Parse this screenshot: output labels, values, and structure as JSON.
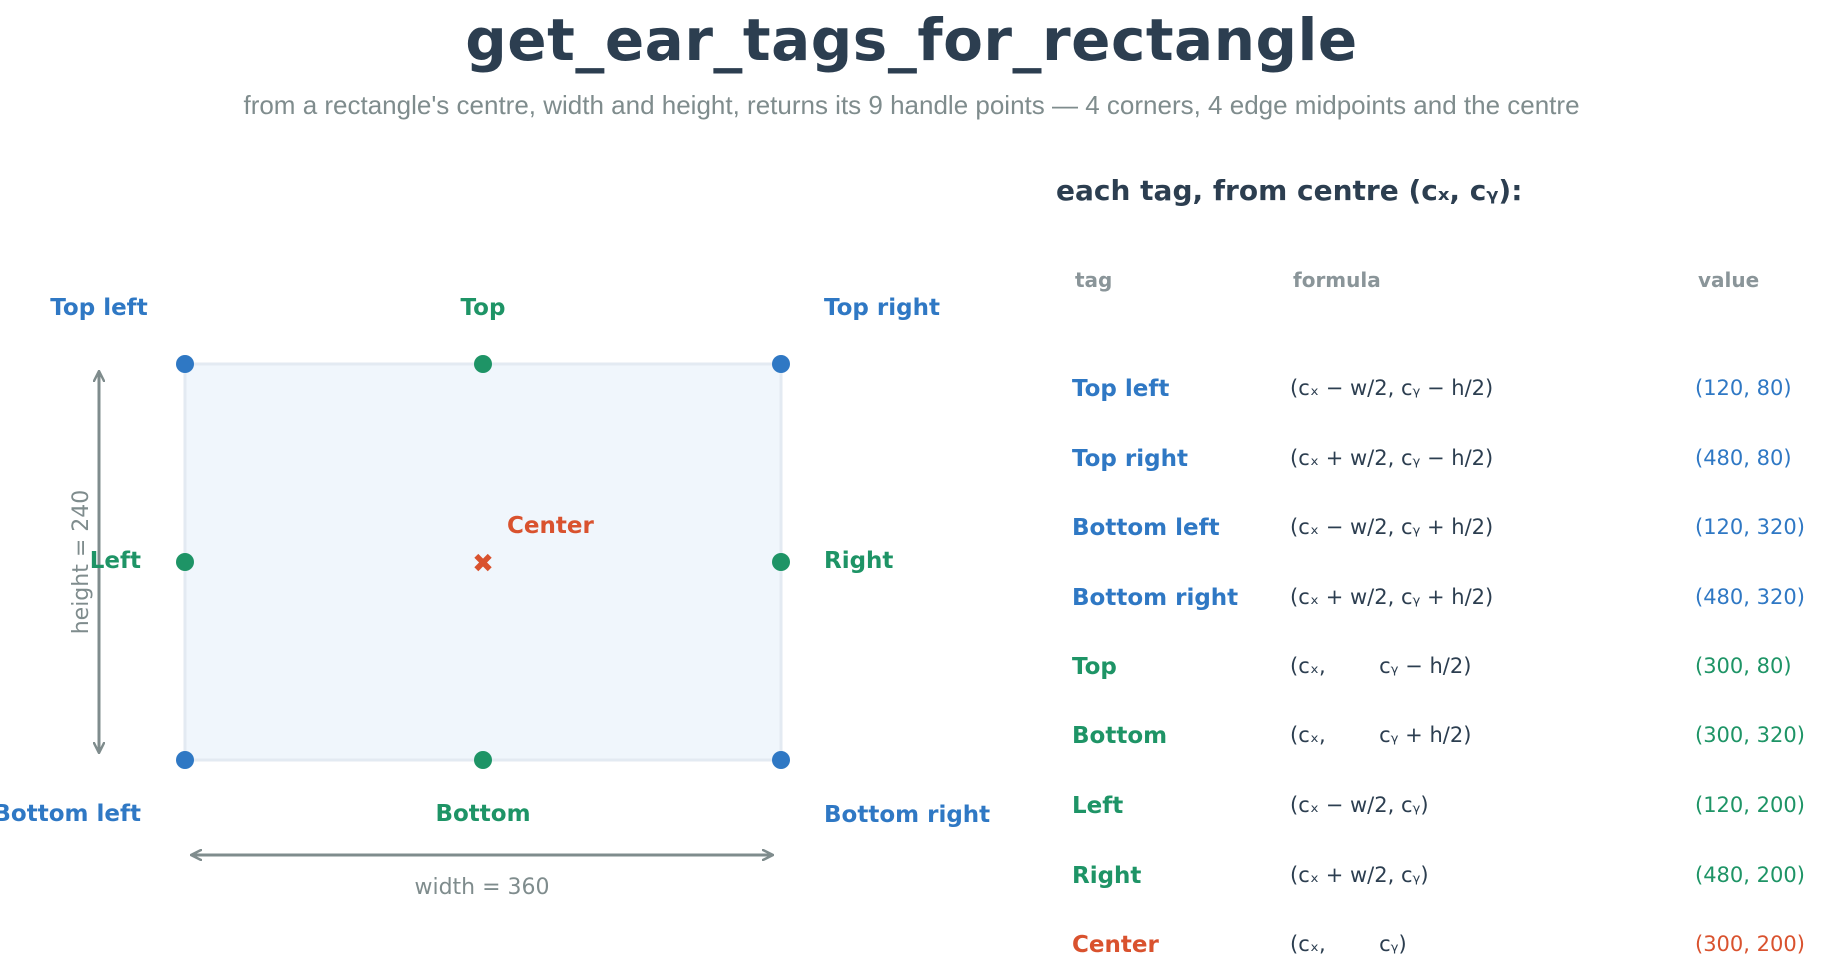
{
  "title": "get_ear_tags_for_rectangle",
  "subtitle": "from a rectangle's centre, width and height, returns its 9 handle points  —  4 corners, 4 edge midpoints and the centre",
  "colors": {
    "corner": "#2f78c4",
    "edge": "#1e9466",
    "center": "#d9522e",
    "rect_fill": "#f0f6fc",
    "rect_stroke": "#e3eaf2",
    "dimension": "#7f8c8d"
  },
  "diagram": {
    "labels": {
      "top_left": "Top left",
      "top": "Top",
      "top_right": "Top right",
      "left": "Left",
      "center": "Center",
      "right": "Right",
      "bottom_left": "Bottom left",
      "bottom": "Bottom",
      "bottom_right": "Bottom right"
    },
    "center_marker": "✖",
    "height_label": "height = 240",
    "width_label": "width = 360"
  },
  "table": {
    "heading": "each tag, from centre (cₓ, cᵧ):",
    "columns": {
      "tag": "tag",
      "formula": "formula",
      "value": "value"
    },
    "rows": [
      {
        "tag": "Top left",
        "formula": "(cₓ − w/2, cᵧ − h/2)",
        "value": "(120, 80)",
        "kind": "corner"
      },
      {
        "tag": "Top right",
        "formula": "(cₓ + w/2, cᵧ − h/2)",
        "value": "(480, 80)",
        "kind": "corner"
      },
      {
        "tag": "Bottom left",
        "formula": "(cₓ − w/2, cᵧ + h/2)",
        "value": "(120, 320)",
        "kind": "corner"
      },
      {
        "tag": "Bottom right",
        "formula": "(cₓ + w/2, cᵧ + h/2)",
        "value": "(480, 320)",
        "kind": "corner"
      },
      {
        "tag": "Top",
        "formula": "(cₓ,        cᵧ − h/2)",
        "value": "(300, 80)",
        "kind": "edge"
      },
      {
        "tag": "Bottom",
        "formula": "(cₓ,        cᵧ + h/2)",
        "value": "(300, 320)",
        "kind": "edge"
      },
      {
        "tag": "Left",
        "formula": "(cₓ − w/2, cᵧ)",
        "value": "(120, 200)",
        "kind": "edge"
      },
      {
        "tag": "Right",
        "formula": "(cₓ + w/2, cᵧ)",
        "value": "(480, 200)",
        "kind": "edge"
      },
      {
        "tag": "Center",
        "formula": "(cₓ,        cᵧ)",
        "value": "(300, 200)",
        "kind": "center"
      }
    ]
  }
}
